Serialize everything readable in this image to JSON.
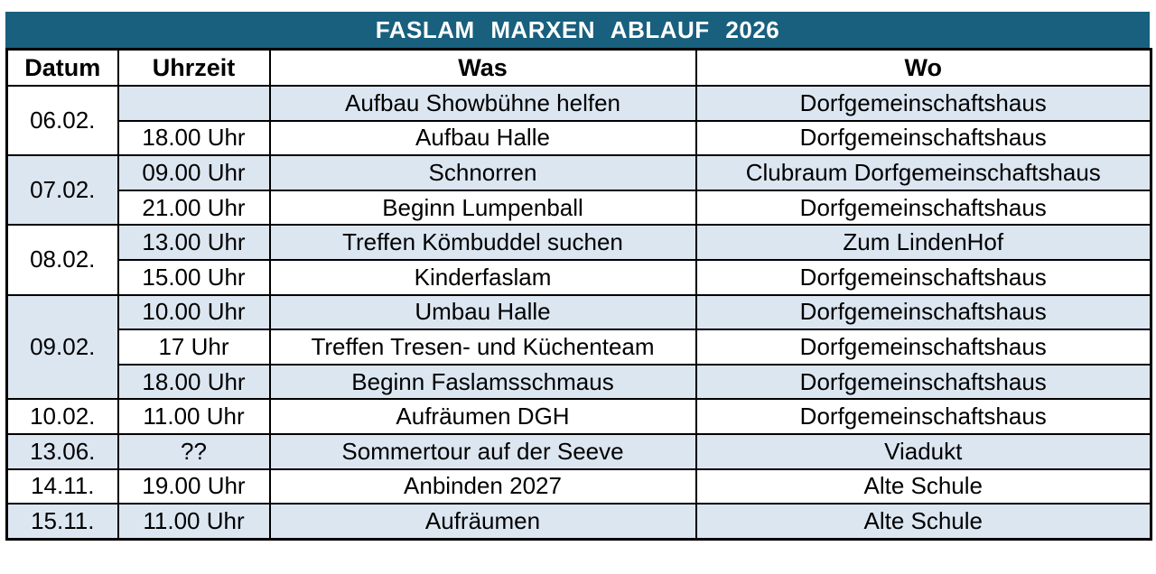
{
  "title": "FASLAM MARXEN ABLAUF 2026",
  "columns": {
    "datum": "Datum",
    "uhrzeit": "Uhrzeit",
    "was": "Was",
    "wo": "Wo"
  },
  "colors": {
    "title_bg": "#18607E",
    "title_text": "#FFFFFF",
    "shaded_row": "#DCE6F1",
    "plain_row": "#FFFFFF",
    "border": "#000000",
    "text": "#000000"
  },
  "schedule": [
    {
      "date": "06.02.",
      "date_shaded": false,
      "events": [
        {
          "time": "",
          "what": "Aufbau Showbühne helfen",
          "where": "Dorfgemeinschaftshaus",
          "shaded": true
        },
        {
          "time": "18.00 Uhr",
          "what": "Aufbau Halle",
          "where": "Dorfgemeinschaftshaus",
          "shaded": false
        }
      ]
    },
    {
      "date": "07.02.",
      "date_shaded": true,
      "events": [
        {
          "time": "09.00 Uhr",
          "what": "Schnorren",
          "where": "Clubraum Dorfgemeinschaftshaus",
          "shaded": true
        },
        {
          "time": "21.00 Uhr",
          "what": "Beginn Lumpenball",
          "where": "Dorfgemeinschaftshaus",
          "shaded": false
        }
      ]
    },
    {
      "date": "08.02.",
      "date_shaded": false,
      "events": [
        {
          "time": "13.00 Uhr",
          "what": "Treffen Kömbuddel suchen",
          "where": "Zum LindenHof",
          "shaded": true
        },
        {
          "time": "15.00 Uhr",
          "what": "Kinderfaslam",
          "where": "Dorfgemeinschaftshaus",
          "shaded": false
        }
      ]
    },
    {
      "date": "09.02.",
      "date_shaded": true,
      "events": [
        {
          "time": "10.00 Uhr",
          "what": "Umbau Halle",
          "where": "Dorfgemeinschaftshaus",
          "shaded": true
        },
        {
          "time": "17 Uhr",
          "what": "Treffen Tresen- und Küchenteam",
          "where": "Dorfgemeinschaftshaus",
          "shaded": false
        },
        {
          "time": "18.00 Uhr",
          "what": "Beginn Faslamsschmaus",
          "where": "Dorfgemeinschaftshaus",
          "shaded": true
        }
      ]
    },
    {
      "date": "10.02.",
      "date_shaded": false,
      "events": [
        {
          "time": "11.00 Uhr",
          "what": "Aufräumen DGH",
          "where": "Dorfgemeinschaftshaus",
          "shaded": false
        }
      ]
    },
    {
      "date": "13.06.",
      "date_shaded": true,
      "events": [
        {
          "time": "??",
          "what": "Sommertour auf der Seeve",
          "where": "Viadukt",
          "shaded": true
        }
      ]
    },
    {
      "date": "14.11.",
      "date_shaded": false,
      "events": [
        {
          "time": "19.00 Uhr",
          "what": "Anbinden 2027",
          "where": "Alte Schule",
          "shaded": false
        }
      ]
    },
    {
      "date": "15.11.",
      "date_shaded": true,
      "events": [
        {
          "time": "11.00 Uhr",
          "what": "Aufräumen",
          "where": "Alte Schule",
          "shaded": true
        }
      ]
    }
  ]
}
